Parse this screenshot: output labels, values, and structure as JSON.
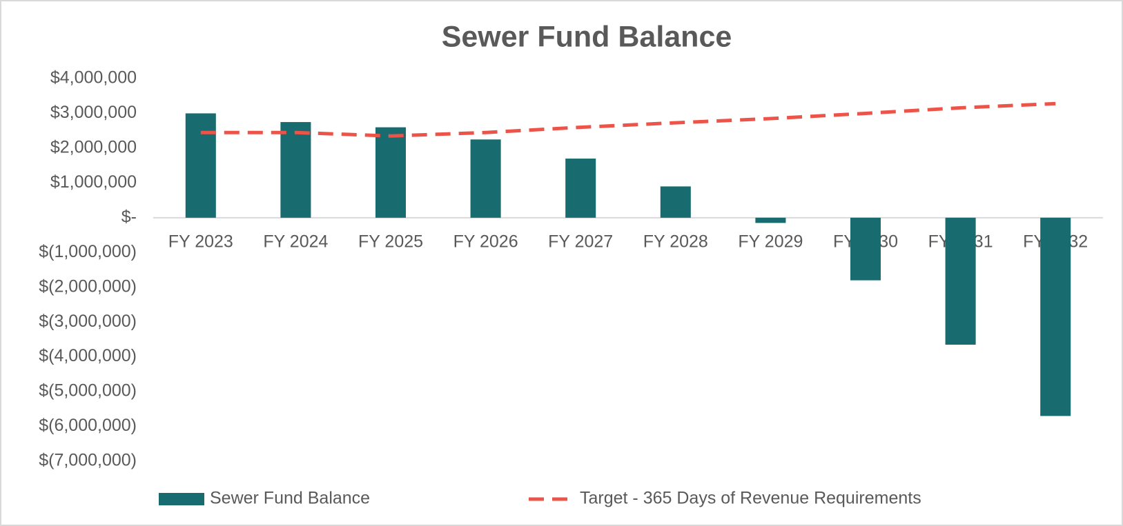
{
  "chart_data": {
    "type": "combo",
    "title": "Sewer Fund Balance",
    "categories": [
      "FY 2023",
      "FY 2024",
      "FY 2025",
      "FY 2026",
      "FY 2027",
      "FY 2028",
      "FY 2029",
      "FY 2030",
      "FY 2031",
      "FY 2032"
    ],
    "series": [
      {
        "name": "Sewer Fund Balance",
        "type": "bar",
        "color": "#186b6e",
        "values": [
          3000000,
          2750000,
          2600000,
          2250000,
          1700000,
          900000,
          -150000,
          -1800000,
          -3650000,
          -5700000
        ]
      },
      {
        "name": "Target - 365 Days of Revenue Requirements",
        "type": "line",
        "color": "#ec5449",
        "dashed": true,
        "values": [
          2450000,
          2450000,
          2350000,
          2450000,
          2600000,
          2730000,
          2850000,
          3000000,
          3160000,
          3280000
        ]
      }
    ],
    "ylim": [
      -7000000,
      4000000
    ],
    "yticks": [
      {
        "value": 4000000,
        "label": "$4,000,000"
      },
      {
        "value": 3000000,
        "label": "$3,000,000"
      },
      {
        "value": 2000000,
        "label": "$2,000,000"
      },
      {
        "value": 1000000,
        "label": "$1,000,000"
      },
      {
        "value": 0,
        "label": "$-"
      },
      {
        "value": -1000000,
        "label": "$(1,000,000)"
      },
      {
        "value": -2000000,
        "label": "$(2,000,000)"
      },
      {
        "value": -3000000,
        "label": "$(3,000,000)"
      },
      {
        "value": -4000000,
        "label": "$(4,000,000)"
      },
      {
        "value": -5000000,
        "label": "$(5,000,000)"
      },
      {
        "value": -6000000,
        "label": "$(6,000,000)"
      },
      {
        "value": -7000000,
        "label": "$(7,000,000)"
      }
    ],
    "grid": false,
    "legend": "bottom"
  }
}
